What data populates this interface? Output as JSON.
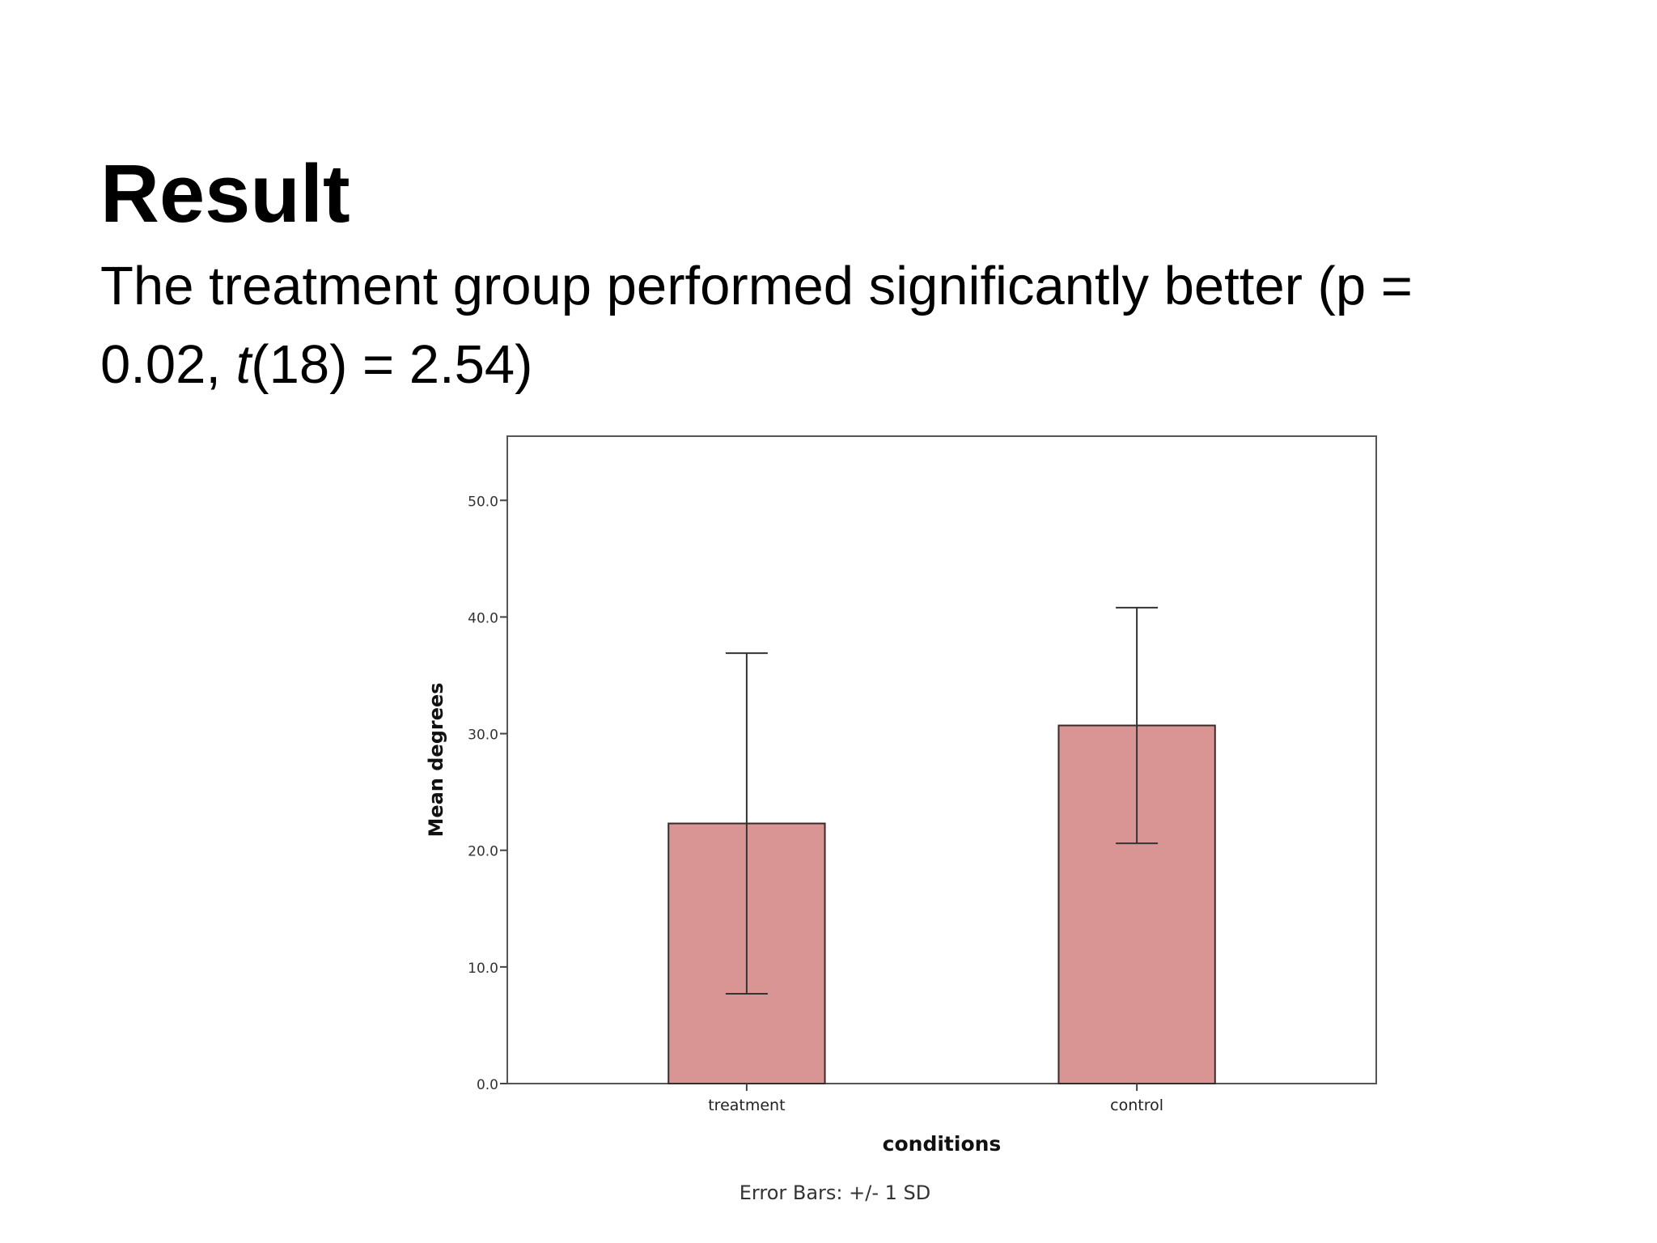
{
  "slide": {
    "title": "Result",
    "text_part1": "The treatment group performed significantly better (p = 0.02, ",
    "text_stat": "t",
    "text_part2": "(18) = 2.54)"
  },
  "colors": {
    "bar_fill": "#d99594",
    "bar_stroke": "#3a2a2a",
    "frame": "#555555",
    "error_bar": "#333333"
  },
  "chart_data": {
    "type": "bar",
    "title": "",
    "categories": [
      "treatment",
      "control"
    ],
    "values": [
      22.3,
      30.7
    ],
    "error_bars": {
      "type": "+/- 1 SD",
      "sd": [
        14.6,
        10.1
      ]
    },
    "xlabel": "conditions",
    "ylabel": "Mean degrees",
    "ylim": [
      0,
      55.5
    ],
    "yticks": [
      0,
      10,
      20,
      30,
      40,
      50
    ],
    "ytick_labels": [
      "0.0",
      "10.0",
      "20.0",
      "30.0",
      "40.0",
      "50.0"
    ],
    "grid": false,
    "legend": "none",
    "footnote": "Error Bars: +/- 1 SD"
  }
}
